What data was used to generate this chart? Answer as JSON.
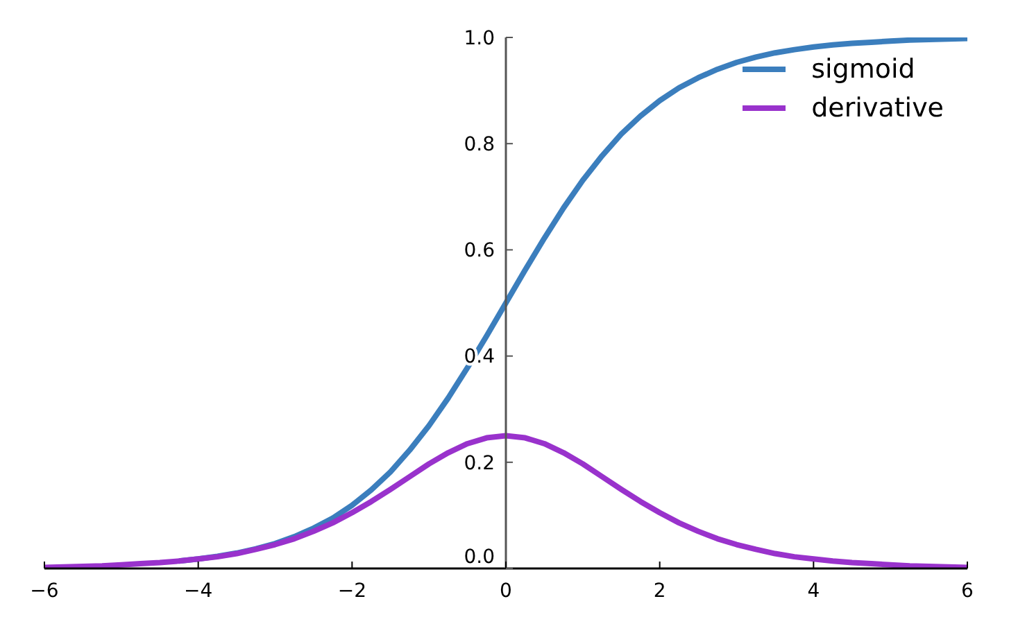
{
  "chart_data": {
    "type": "line",
    "x": [
      -6,
      -5.75,
      -5.5,
      -5.25,
      -5,
      -4.75,
      -4.5,
      -4.25,
      -4,
      -3.75,
      -3.5,
      -3.25,
      -3,
      -2.75,
      -2.5,
      -2.25,
      -2,
      -1.75,
      -1.5,
      -1.25,
      -1,
      -0.75,
      -0.5,
      -0.25,
      0,
      0.25,
      0.5,
      0.75,
      1,
      1.25,
      1.5,
      1.75,
      2,
      2.25,
      2.5,
      2.75,
      3,
      3.25,
      3.5,
      3.75,
      4,
      4.25,
      4.5,
      4.75,
      5,
      5.25,
      5.5,
      5.75,
      6
    ],
    "series": [
      {
        "name": "sigmoid",
        "color": "#3b7ebd",
        "values": [
          null,
          null,
          null,
          null,
          null,
          null,
          null,
          0.014,
          0.018,
          0.023,
          0.029,
          0.037,
          0.047,
          0.06,
          0.076,
          0.095,
          0.119,
          0.148,
          0.182,
          0.223,
          0.269,
          0.321,
          0.378,
          0.438,
          0.5,
          0.562,
          0.622,
          0.679,
          0.731,
          0.777,
          0.818,
          0.852,
          0.881,
          0.905,
          0.924,
          0.94,
          0.953,
          0.963,
          0.971,
          0.977,
          0.982,
          0.986,
          0.989,
          0.991,
          0.993,
          0.995,
          0.996,
          0.997,
          0.998
        ]
      },
      {
        "name": "derivative",
        "color": "#9932cc",
        "values": [
          0.002,
          0.003,
          0.004,
          0.005,
          0.007,
          0.009,
          0.011,
          0.014,
          0.018,
          0.022,
          0.028,
          0.036,
          0.045,
          0.056,
          0.07,
          0.086,
          0.105,
          0.126,
          0.149,
          0.173,
          0.197,
          0.218,
          0.235,
          0.246,
          0.25,
          0.246,
          0.235,
          0.218,
          0.197,
          0.173,
          0.149,
          0.126,
          0.105,
          0.086,
          0.07,
          0.056,
          0.045,
          0.036,
          0.028,
          0.022,
          0.018,
          0.014,
          0.011,
          0.009,
          0.007,
          0.005,
          0.004,
          0.003,
          0.002
        ]
      }
    ],
    "xlim": [
      -6,
      6
    ],
    "xticks": [
      {
        "value": -6,
        "label": "−6"
      },
      {
        "value": -4,
        "label": "−4"
      },
      {
        "value": -2,
        "label": "−2"
      },
      0,
      2,
      4,
      6
    ],
    "ylim": [
      0,
      1
    ],
    "yticks": [
      {
        "value": 0,
        "label": "0.0"
      },
      0.2,
      0.4,
      0.6,
      0.8,
      {
        "value": 1,
        "label": "1.0"
      }
    ],
    "legend": "top right"
  }
}
